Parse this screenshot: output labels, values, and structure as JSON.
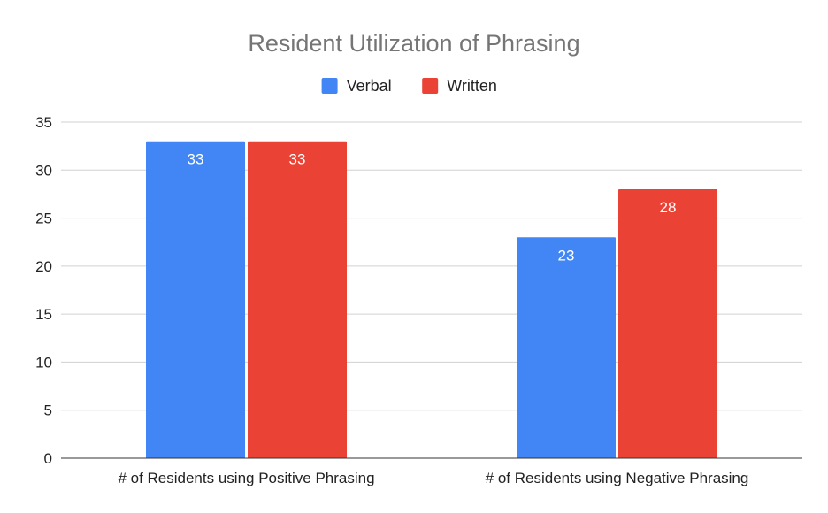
{
  "chart_data": {
    "type": "bar",
    "title": "Resident Utilization of Phrasing",
    "xlabel": "",
    "ylabel": "",
    "categories": [
      "# of Residents using Positive Phrasing",
      "# of Residents using Negative Phrasing"
    ],
    "series": [
      {
        "name": "Verbal",
        "values": [
          33,
          23
        ],
        "color": "#4285f4"
      },
      {
        "name": "Written",
        "values": [
          33,
          28
        ],
        "color": "#ea4335"
      }
    ],
    "ylim": [
      0,
      35
    ],
    "yticks": [
      0,
      5,
      10,
      15,
      20,
      25,
      30,
      35
    ],
    "grid": true,
    "legend_position": "top",
    "data_labels": true
  }
}
